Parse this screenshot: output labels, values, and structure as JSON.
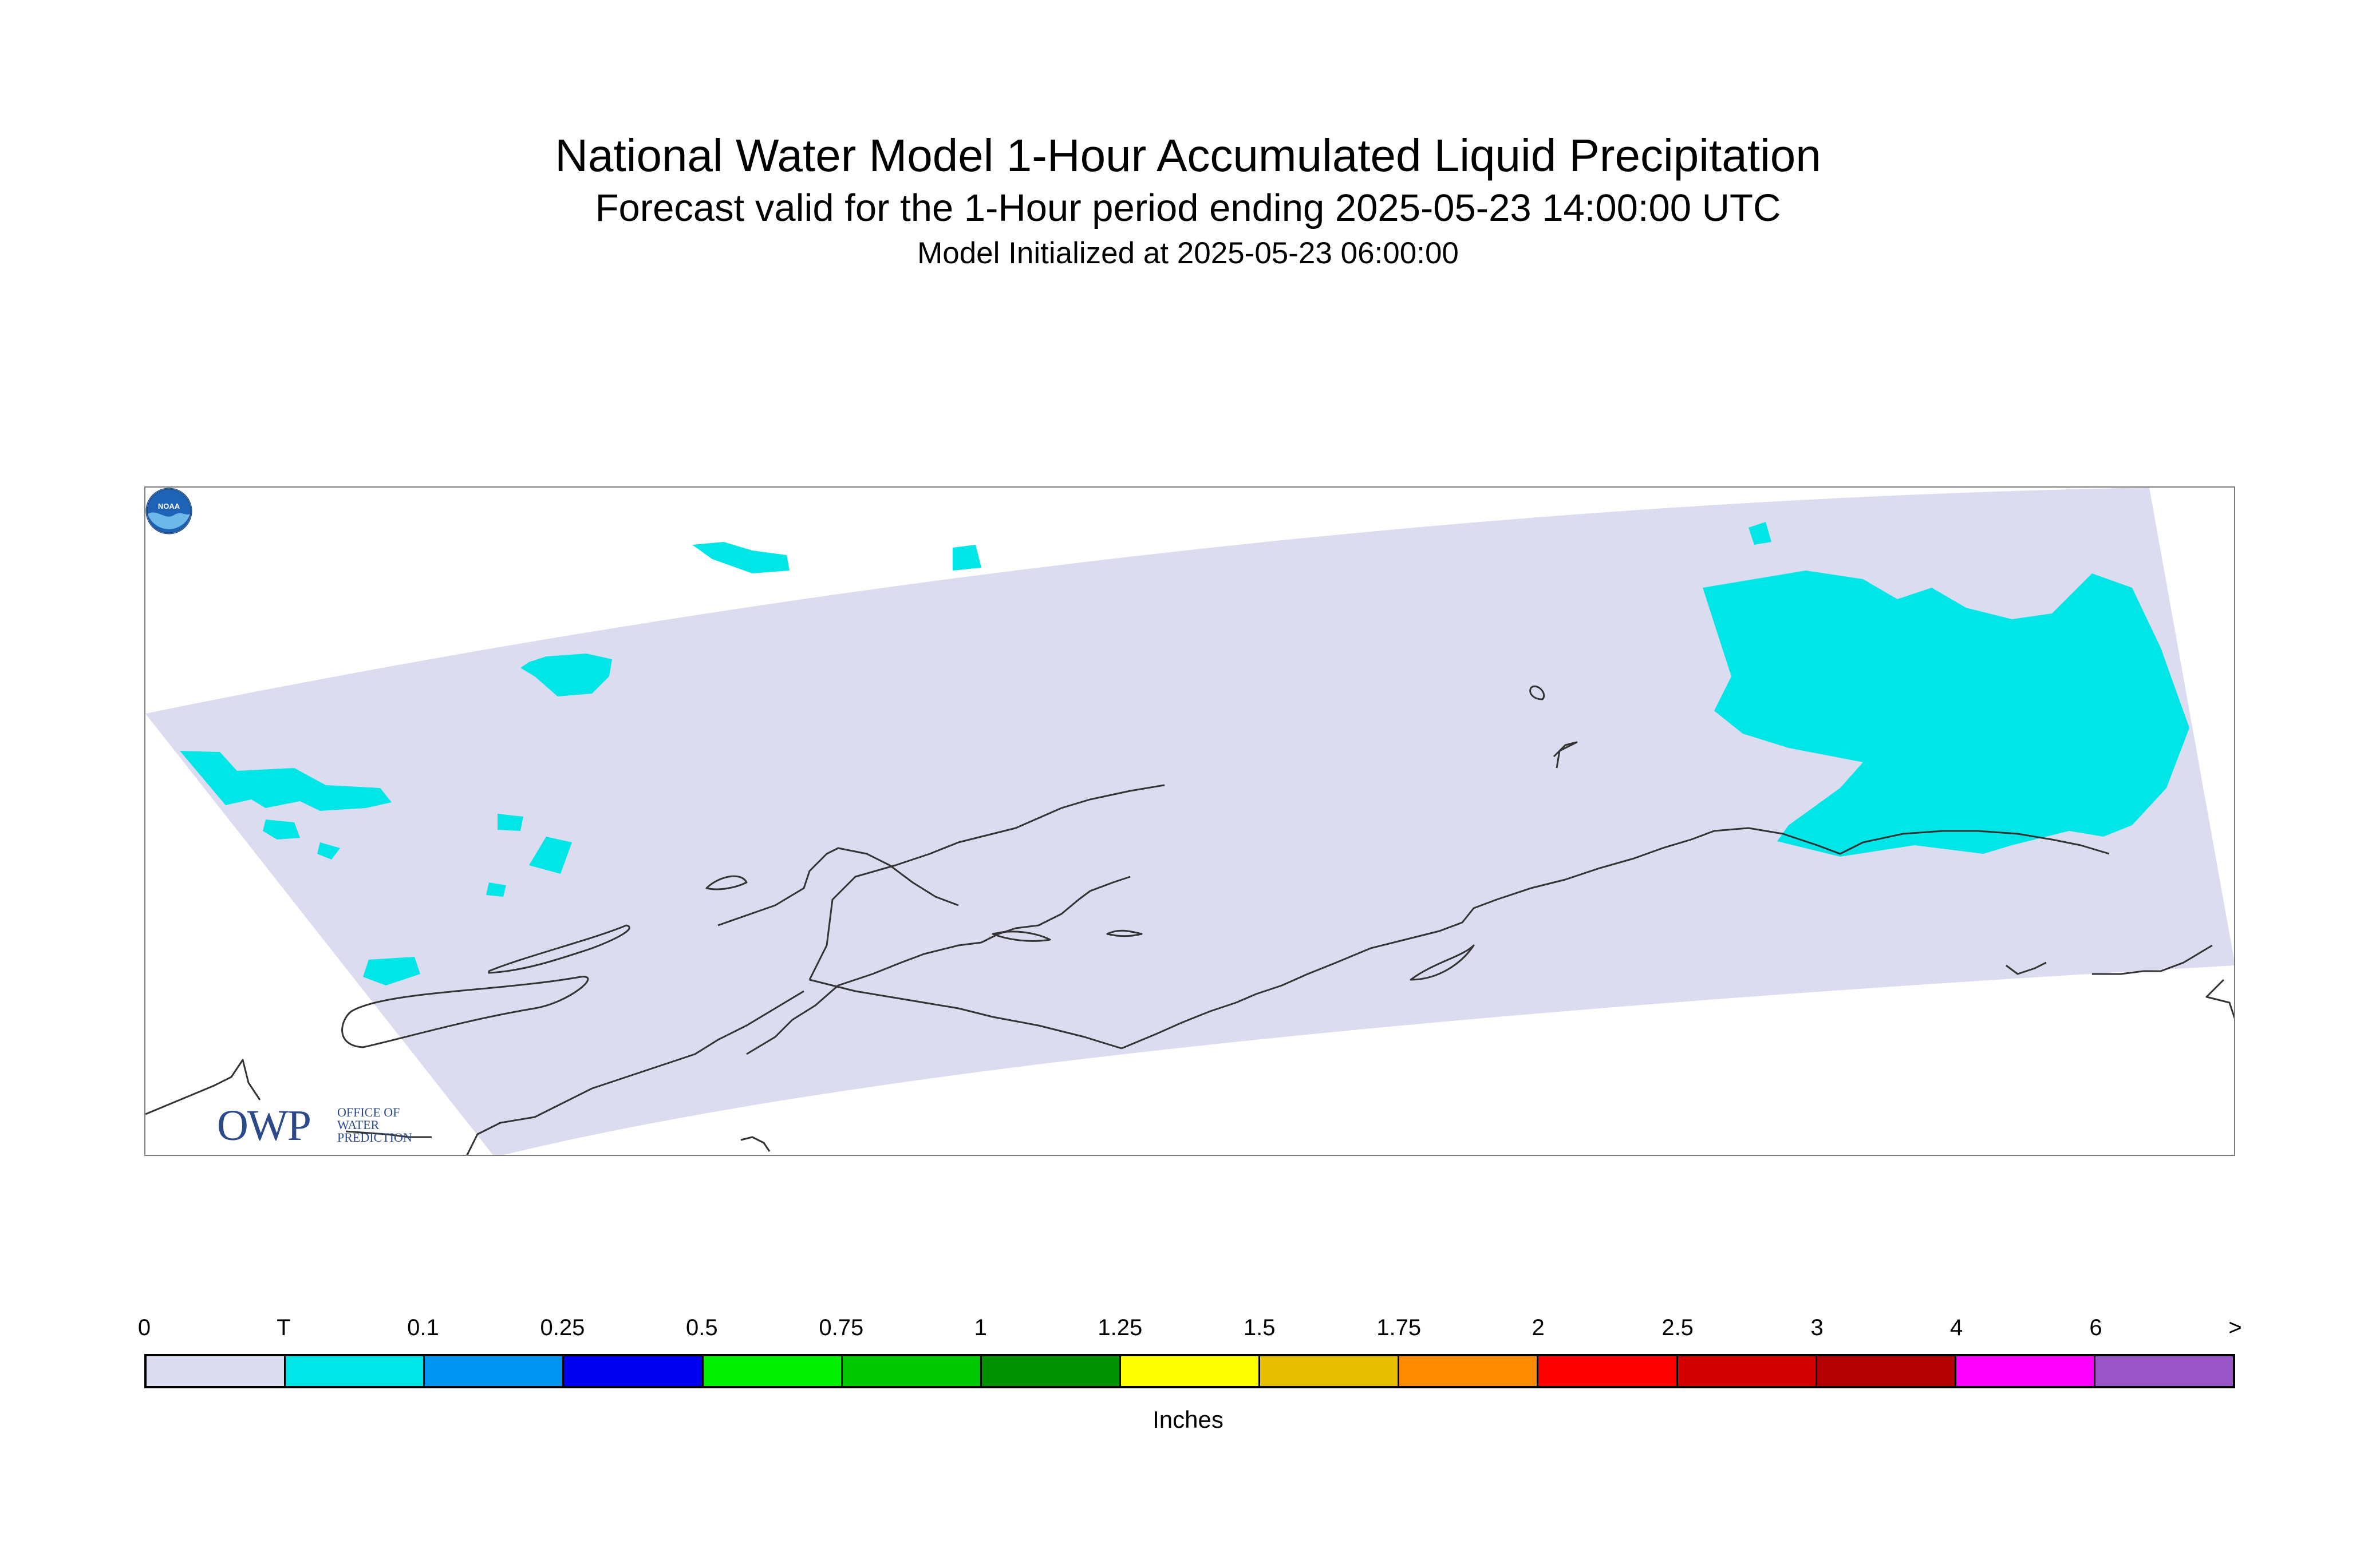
{
  "title": "National Water Model 1-Hour Accumulated Liquid Precipitation",
  "subtitle": "Forecast valid for the 1-Hour period ending 2025-05-23 14:00:00 UTC",
  "init_line": "Model Initialized at 2025-05-23 06:00:00",
  "logo": {
    "owp_text": "OWP",
    "owp_sub": [
      "OFFICE OF",
      "WATER",
      "PREDICTION"
    ],
    "noaa_text": "NOAA"
  },
  "legend": {
    "units": "Inches",
    "tick_labels": [
      "0",
      "T",
      "0.1",
      "0.25",
      "0.5",
      "0.75",
      "1",
      "1.25",
      "1.5",
      "1.75",
      "2",
      "2.5",
      "3",
      "4",
      "6",
      ">"
    ],
    "colors": [
      "#dcdcf0",
      "#00e6e6",
      "#0095f0",
      "#0000f0",
      "#00f000",
      "#00c800",
      "#009100",
      "#ffff00",
      "#e6bf00",
      "#ff8c00",
      "#ff0000",
      "#d40000",
      "#b40000",
      "#ff00ff",
      "#9a55c8"
    ]
  },
  "map": {
    "domain_fill": "#dcdcf0",
    "precip_fill": "#00e6e6",
    "coast_color": "#333333"
  }
}
